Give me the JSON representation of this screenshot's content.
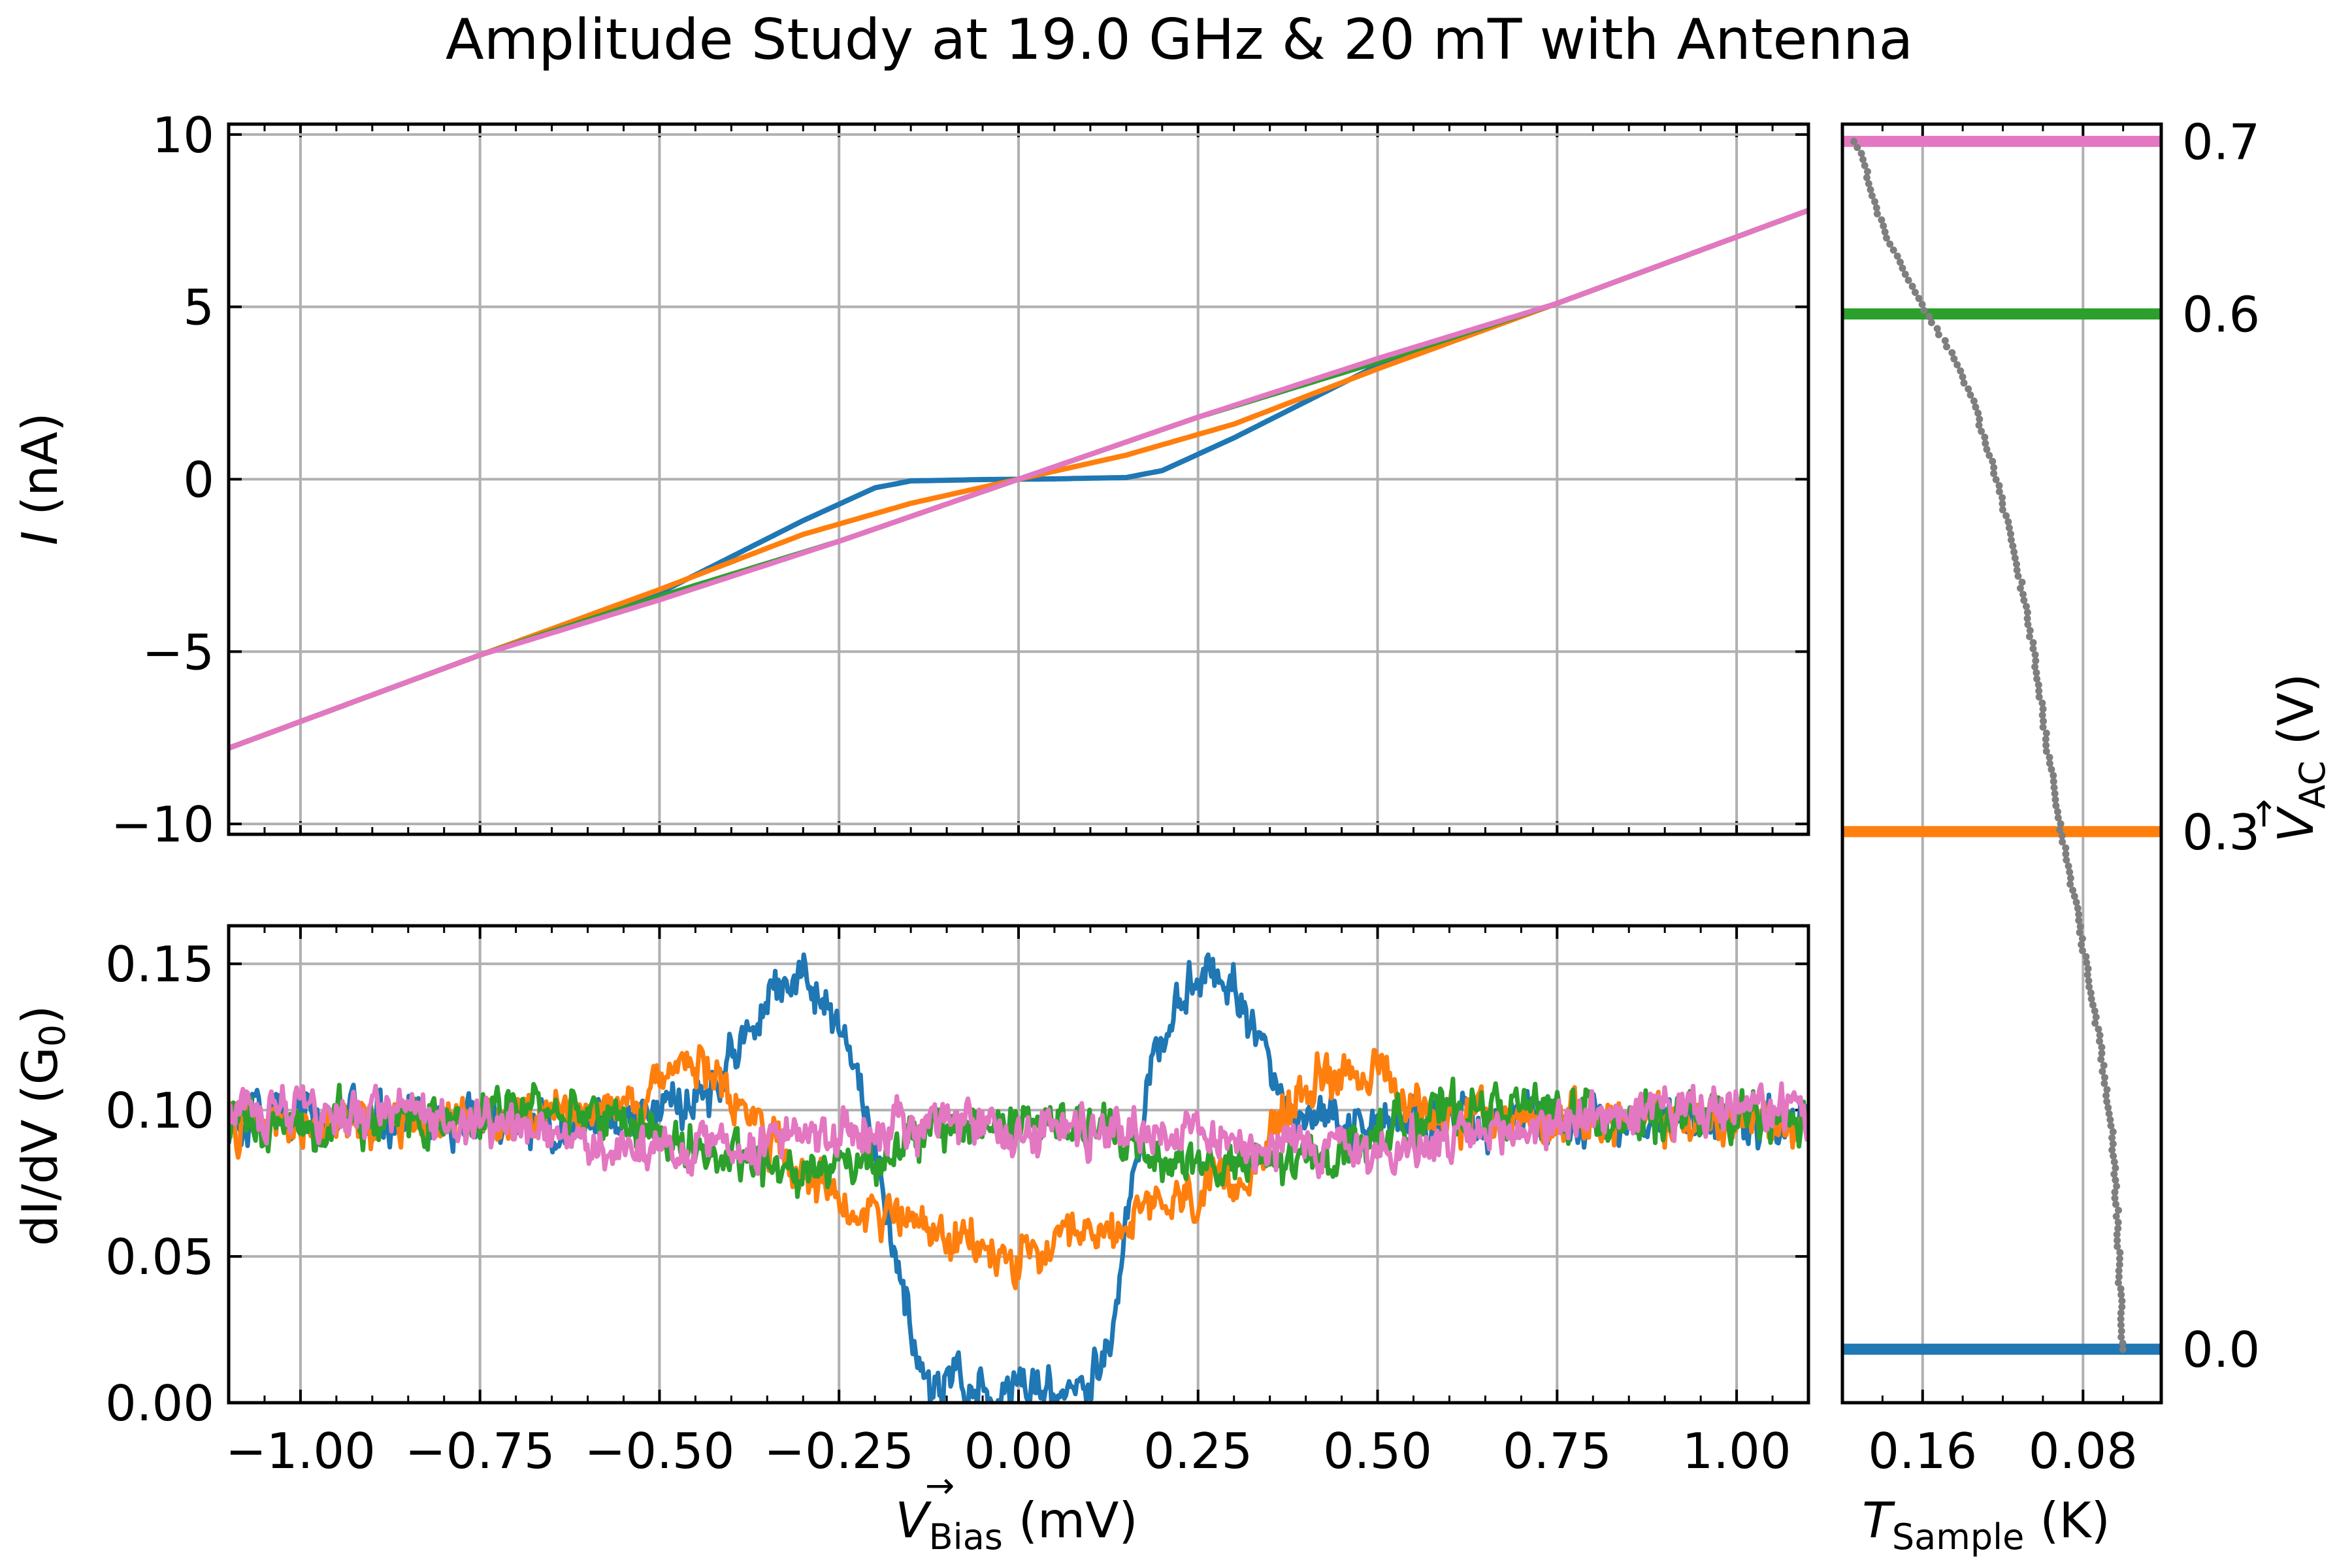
{
  "chart_data": [
    {
      "panel": "iv",
      "type": "line",
      "title": "Amplitude Study at 19.0 GHz & 20 mT with Antenna",
      "xlabel": "V_Bias (mV)",
      "ylabel": "I (nA)",
      "xlim": [
        -1.1,
        1.1
      ],
      "ylim": [
        -10.3,
        10.3
      ],
      "xticks": [
        -1.0,
        -0.75,
        -0.5,
        -0.25,
        0.0,
        0.25,
        0.5,
        0.75,
        1.0
      ],
      "yticks": [
        -10,
        -5,
        0,
        5,
        10
      ],
      "yticklabels": [
        "−10",
        "−5",
        "0",
        "5",
        "10"
      ],
      "grid": true,
      "series": [
        {
          "color": "#1f77b4",
          "x": [
            -1.1,
            -0.75,
            -0.5,
            -0.3,
            -0.2,
            -0.15,
            -0.05,
            0.0,
            0.05,
            0.15,
            0.2,
            0.3,
            0.5,
            0.75,
            1.1
          ],
          "y": [
            -7.8,
            -5.1,
            -3.3,
            -1.2,
            -0.25,
            -0.05,
            -0.01,
            0.0,
            0.01,
            0.05,
            0.25,
            1.2,
            3.3,
            5.1,
            7.8
          ]
        },
        {
          "color": "#ff7f0e",
          "x": [
            -1.1,
            -0.75,
            -0.5,
            -0.3,
            -0.15,
            0.0,
            0.15,
            0.3,
            0.5,
            0.75,
            1.1
          ],
          "y": [
            -7.8,
            -5.1,
            -3.2,
            -1.6,
            -0.7,
            0.0,
            0.7,
            1.6,
            3.2,
            5.1,
            7.8
          ]
        },
        {
          "color": "#2ca02c",
          "x": [
            -1.1,
            -0.75,
            -0.5,
            -0.25,
            0.0,
            0.25,
            0.5,
            0.75,
            1.1
          ],
          "y": [
            -7.8,
            -5.1,
            -3.4,
            -1.8,
            0.0,
            1.8,
            3.4,
            5.1,
            7.8
          ]
        },
        {
          "color": "#e377c2",
          "x": [
            -1.1,
            -0.75,
            -0.5,
            -0.25,
            0.0,
            0.25,
            0.5,
            0.75,
            1.1
          ],
          "y": [
            -7.8,
            -5.1,
            -3.5,
            -1.8,
            0.0,
            1.8,
            3.5,
            5.1,
            7.8
          ]
        }
      ]
    },
    {
      "panel": "didv",
      "type": "line",
      "xlabel": "V_Bias (mV)",
      "ylabel": "dI/dV (G₀)",
      "xlim": [
        -1.1,
        1.1
      ],
      "ylim": [
        0.0,
        0.163
      ],
      "xticks": [
        -1.0,
        -0.75,
        -0.5,
        -0.25,
        0.0,
        0.25,
        0.5,
        0.75,
        1.0
      ],
      "xticklabels": [
        "−1.00",
        "−0.75",
        "−0.50",
        "−0.25",
        "0.00",
        "0.25",
        "0.50",
        "0.75",
        "1.00"
      ],
      "yticks": [
        0.0,
        0.05,
        0.1,
        0.15
      ],
      "yticklabels": [
        "0.00",
        "0.05",
        "0.10",
        "0.15"
      ],
      "grid": true,
      "noise_amplitude": 0.012,
      "series": [
        {
          "color": "#1f77b4",
          "x": [
            -1.1,
            -0.6,
            -0.45,
            -0.38,
            -0.33,
            -0.3,
            -0.27,
            -0.22,
            -0.18,
            -0.15,
            -0.13,
            -0.05,
            0.0,
            0.05,
            0.1,
            0.13,
            0.15,
            0.18,
            0.22,
            0.27,
            0.3,
            0.33,
            0.38,
            0.45,
            0.6,
            1.1
          ],
          "y": [
            0.096,
            0.096,
            0.102,
            0.125,
            0.143,
            0.148,
            0.138,
            0.11,
            0.06,
            0.025,
            0.007,
            0.005,
            0.005,
            0.005,
            0.007,
            0.025,
            0.06,
            0.11,
            0.138,
            0.148,
            0.143,
            0.125,
            0.102,
            0.096,
            0.096,
            0.096
          ]
        },
        {
          "color": "#ff7f0e",
          "x": [
            -1.1,
            -0.7,
            -0.55,
            -0.5,
            -0.45,
            -0.4,
            -0.35,
            -0.3,
            -0.2,
            -0.1,
            0.0,
            0.1,
            0.2,
            0.3,
            0.35,
            0.4,
            0.45,
            0.5,
            0.55,
            0.7,
            1.1
          ],
          "y": [
            0.096,
            0.097,
            0.1,
            0.112,
            0.115,
            0.108,
            0.09,
            0.074,
            0.067,
            0.056,
            0.048,
            0.056,
            0.067,
            0.074,
            0.09,
            0.108,
            0.115,
            0.112,
            0.1,
            0.097,
            0.096
          ]
        },
        {
          "color": "#2ca02c",
          "x": [
            -1.1,
            -0.8,
            -0.7,
            -0.6,
            -0.5,
            -0.4,
            -0.3,
            -0.2,
            -0.1,
            0.0,
            0.1,
            0.2,
            0.3,
            0.4,
            0.5,
            0.6,
            0.7,
            0.8,
            1.1
          ],
          "y": [
            0.096,
            0.098,
            0.101,
            0.1,
            0.092,
            0.082,
            0.08,
            0.084,
            0.094,
            0.096,
            0.094,
            0.084,
            0.08,
            0.082,
            0.092,
            0.1,
            0.101,
            0.098,
            0.096
          ]
        },
        {
          "color": "#e377c2",
          "x": [
            -1.1,
            -0.9,
            -0.75,
            -0.6,
            -0.5,
            -0.4,
            -0.2,
            0.0,
            0.2,
            0.4,
            0.5,
            0.6,
            0.75,
            0.9,
            1.1
          ],
          "y": [
            0.099,
            0.1,
            0.096,
            0.088,
            0.086,
            0.088,
            0.093,
            0.094,
            0.093,
            0.088,
            0.086,
            0.088,
            0.096,
            0.1,
            0.099
          ]
        }
      ]
    },
    {
      "panel": "temperature",
      "type": "line",
      "xlabel": "T_Sample (K)",
      "ylabel": "V_AC (V)",
      "x_inverted": true,
      "xlim": [
        0.2,
        0.041
      ],
      "ylim": [
        -0.031,
        0.71
      ],
      "xticks": [
        0.16,
        0.08
      ],
      "xticklabels": [
        "0.16",
        "0.08"
      ],
      "yticks": [
        0.0,
        0.3,
        0.6,
        0.7
      ],
      "yticklabels": [
        "0.0",
        "0.3",
        "0.6",
        "0.7"
      ],
      "grid": true,
      "levels": [
        {
          "color": "#1f77b4",
          "v": 0.0
        },
        {
          "color": "#ff7f0e",
          "v": 0.3
        },
        {
          "color": "#2ca02c",
          "v": 0.6
        },
        {
          "color": "#e377c2",
          "v": 0.7
        }
      ],
      "trace": {
        "color": "#7f7f7f",
        "points": [
          [
            0.06,
            0.0
          ],
          [
            0.061,
            0.02
          ],
          [
            0.062,
            0.05
          ],
          [
            0.063,
            0.08
          ],
          [
            0.066,
            0.13
          ],
          [
            0.072,
            0.18
          ],
          [
            0.078,
            0.22
          ],
          [
            0.084,
            0.26
          ],
          [
            0.091,
            0.3
          ],
          [
            0.098,
            0.35
          ],
          [
            0.104,
            0.4
          ],
          [
            0.112,
            0.45
          ],
          [
            0.122,
            0.5
          ],
          [
            0.135,
            0.55
          ],
          [
            0.147,
            0.58
          ],
          [
            0.158,
            0.6
          ],
          [
            0.167,
            0.62
          ],
          [
            0.18,
            0.65
          ],
          [
            0.19,
            0.69
          ],
          [
            0.194,
            0.7
          ]
        ]
      }
    }
  ],
  "figure": {
    "title": "Amplitude Study at 19.0 GHz & 20 mT with Antenna",
    "iv_ylabel": {
      "var": "I",
      "unit": "(nA)"
    },
    "didv_ylabel": {
      "base": "dI/dV (G",
      "sub": "0",
      "close": ")"
    },
    "bias_label": {
      "var": "V",
      "arrow": "→",
      "sub": "Bias",
      "unit": "(mV)"
    },
    "temp_label": {
      "var": "T",
      "sub": "Sample",
      "unit": "(K)"
    },
    "vac_label": {
      "var": "V",
      "arrow": "→",
      "sub": "AC",
      "unit": "(V)"
    }
  }
}
